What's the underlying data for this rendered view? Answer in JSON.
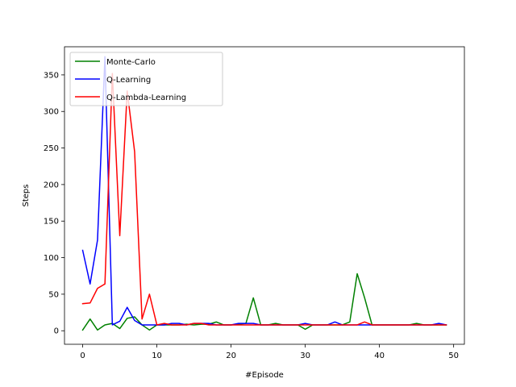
{
  "chart_data": {
    "type": "line",
    "title": "",
    "xlabel": "#Episode",
    "ylabel": "Steps",
    "xlim": [
      -2.45,
      51.45
    ],
    "ylim": [
      -18.5,
      388.5
    ],
    "xticks": [
      0,
      10,
      20,
      30,
      40,
      50
    ],
    "yticks": [
      0,
      50,
      100,
      150,
      200,
      250,
      300,
      350
    ],
    "grid": false,
    "legend_position": "upper left",
    "x": [
      0,
      1,
      2,
      3,
      4,
      5,
      6,
      7,
      8,
      9,
      10,
      11,
      12,
      13,
      14,
      15,
      16,
      17,
      18,
      19,
      20,
      21,
      22,
      23,
      24,
      25,
      26,
      27,
      28,
      29,
      30,
      31,
      32,
      33,
      34,
      35,
      36,
      37,
      38,
      39,
      40,
      41,
      42,
      43,
      44,
      45,
      46,
      47,
      48,
      49
    ],
    "series": [
      {
        "name": "Monte-Carlo",
        "color": "#008000",
        "values": [
          1,
          16,
          1,
          8,
          10,
          3,
          17,
          19,
          8,
          1,
          8,
          8,
          8,
          8,
          9,
          8,
          9,
          9,
          12,
          8,
          8,
          9,
          10,
          45,
          8,
          8,
          10,
          8,
          8,
          8,
          2,
          8,
          8,
          8,
          8,
          8,
          12,
          78,
          45,
          8,
          8,
          8,
          8,
          8,
          8,
          10,
          8,
          8,
          8,
          8
        ]
      },
      {
        "name": "Q-Learning",
        "color": "#0000ff",
        "values": [
          110,
          64,
          124,
          375,
          8,
          13,
          32,
          14,
          8,
          8,
          8,
          8,
          10,
          10,
          8,
          10,
          10,
          10,
          8,
          8,
          8,
          10,
          10,
          10,
          8,
          8,
          8,
          8,
          8,
          8,
          10,
          8,
          8,
          8,
          12,
          8,
          8,
          8,
          8,
          8,
          8,
          8,
          8,
          8,
          8,
          8,
          8,
          8,
          10,
          8
        ]
      },
      {
        "name": "Q-Lambda-Learning",
        "color": "#ff0000",
        "values": [
          37,
          38,
          58,
          64,
          352,
          130,
          328,
          245,
          16,
          50,
          8,
          10,
          8,
          8,
          8,
          10,
          10,
          8,
          8,
          8,
          8,
          8,
          8,
          8,
          8,
          8,
          8,
          8,
          8,
          8,
          8,
          8,
          8,
          8,
          8,
          8,
          8,
          8,
          12,
          8,
          8,
          8,
          8,
          8,
          8,
          8,
          8,
          8,
          8,
          8
        ]
      }
    ]
  }
}
